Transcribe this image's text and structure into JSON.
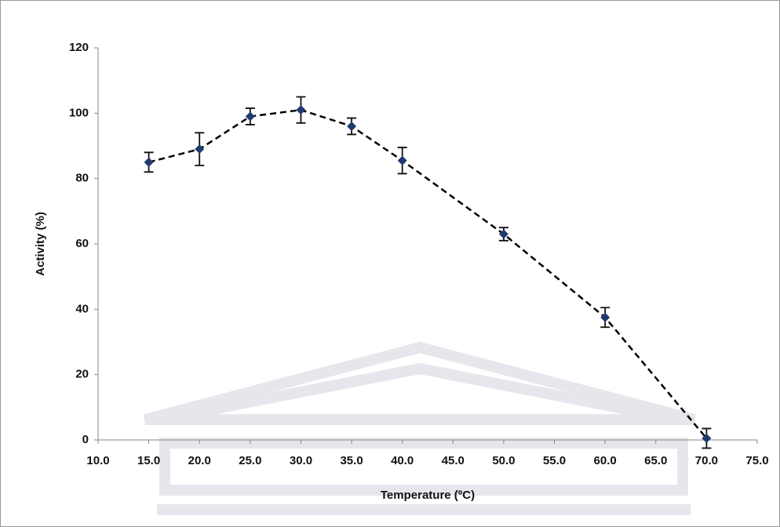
{
  "chart_data": {
    "type": "line",
    "x_label": "Temperature (ºC)",
    "y_label": "Activity (%)",
    "x": [
      15,
      20,
      25,
      30,
      35,
      40,
      50,
      60,
      70
    ],
    "series": [
      {
        "name": "Activity",
        "color": "#1f3a6e",
        "line_color": "#000000",
        "values": [
          85,
          89,
          99,
          101,
          96,
          85.5,
          63,
          37.5,
          0.5
        ],
        "errors": [
          3,
          5,
          2.5,
          4,
          2.5,
          4,
          2,
          3,
          3
        ]
      }
    ],
    "xlim": [
      10,
      75
    ],
    "xticks": [
      {
        "value": 10,
        "label": "10.0"
      },
      {
        "value": 15,
        "label": "15.0"
      },
      {
        "value": 20,
        "label": "20.0"
      },
      {
        "value": 25,
        "label": "25.0"
      },
      {
        "value": 30,
        "label": "30.0"
      },
      {
        "value": 35,
        "label": "35.0"
      },
      {
        "value": 40,
        "label": "40.0"
      },
      {
        "value": 45,
        "label": "45.0"
      },
      {
        "value": 50,
        "label": "50.0"
      },
      {
        "value": 55,
        "label": "55.0"
      },
      {
        "value": 60,
        "label": "60.0"
      },
      {
        "value": 65,
        "label": "65.0"
      },
      {
        "value": 70,
        "label": "70.0"
      },
      {
        "value": 75,
        "label": "75.0"
      }
    ],
    "ylim": [
      0,
      120
    ],
    "yticks": [
      0,
      20,
      40,
      60,
      80,
      100,
      120
    ],
    "grid": false
  }
}
